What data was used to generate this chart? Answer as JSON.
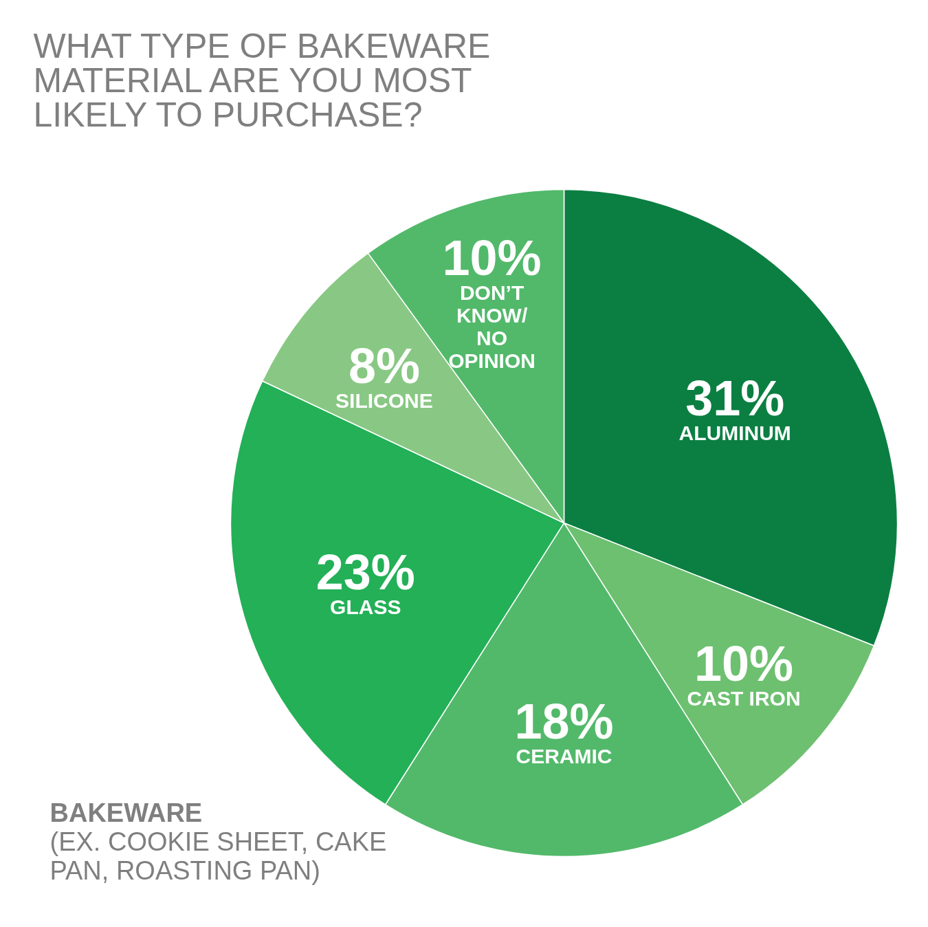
{
  "chart_data": {
    "type": "pie",
    "title": "WHAT TYPE OF BAKEWARE MATERIAL ARE YOU MOST LIKELY TO PURCHASE?",
    "categories": [
      "ALUMINUM",
      "CAST IRON",
      "CERAMIC",
      "GLASS",
      "SILICONE",
      "DON’T KNOW/ NO OPINION"
    ],
    "values": [
      31,
      10,
      18,
      23,
      8,
      10
    ],
    "colors": [
      "#0b7f42",
      "#6dc070",
      "#52b96a",
      "#23b057",
      "#88c884",
      "#52b96a"
    ],
    "value_labels": [
      "31%",
      "10%",
      "18%",
      "23%",
      "8%",
      "10%"
    ],
    "annotations": [
      "BAKEWARE",
      "(EX. COOKIE SHEET, CAKE PAN, ROASTING PAN)"
    ]
  }
}
